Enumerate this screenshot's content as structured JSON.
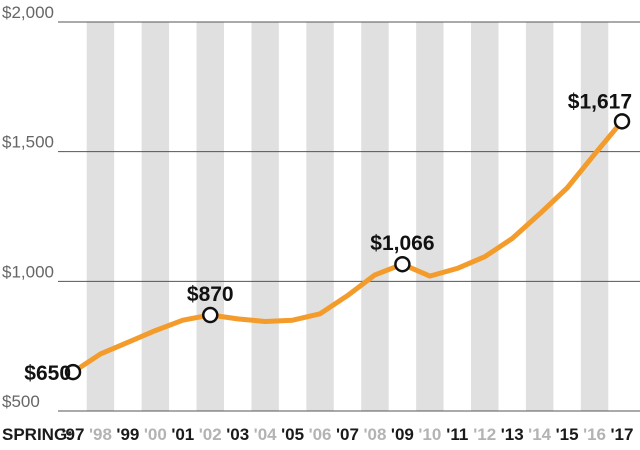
{
  "chart_data": {
    "type": "line",
    "x_prefix_label": "SPRING:",
    "categories": [
      "'97",
      "'98",
      "'99",
      "'00",
      "'01",
      "'02",
      "'03",
      "'04",
      "'05",
      "'06",
      "'07",
      "'08",
      "'09",
      "'10",
      "'11",
      "'12",
      "'13",
      "'14",
      "'15",
      "'16",
      "'17"
    ],
    "bold_categories": [
      "'97",
      "'99",
      "'01",
      "'03",
      "'05",
      "'07",
      "'09",
      "'11",
      "'13",
      "'15",
      "'17"
    ],
    "series": [
      {
        "values": [
          650,
          720,
          765,
          810,
          850,
          870,
          855,
          845,
          850,
          875,
          945,
          1025,
          1066,
          1020,
          1050,
          1095,
          1165,
          1260,
          1360,
          1490,
          1617
        ]
      }
    ],
    "ylim": [
      500,
      2000
    ],
    "yticks": [
      {
        "value": 500,
        "label": "$500"
      },
      {
        "value": 1000,
        "label": "$1,000"
      },
      {
        "value": 1500,
        "label": "$1,500"
      },
      {
        "value": 2000,
        "label": "$2,000"
      }
    ],
    "annotations": [
      {
        "category": "'97",
        "value": 650,
        "label": "$650"
      },
      {
        "category": "'02",
        "value": 870,
        "label": "$870"
      },
      {
        "category": "'09",
        "value": 1066,
        "label": "$1,066"
      },
      {
        "category": "'17",
        "value": 1617,
        "label": "$1,617"
      }
    ],
    "title": "",
    "xlabel": "",
    "ylabel": "",
    "grid": true,
    "alternating_column_bands": true,
    "colors": {
      "line": "#f39c2b",
      "band": "#e0e0e0",
      "grid": "#555555",
      "tick_dark": "#1a1a1a",
      "tick_light": "#b3b3b3",
      "marker_fill": "#ffffff",
      "marker_stroke": "#111111"
    }
  }
}
